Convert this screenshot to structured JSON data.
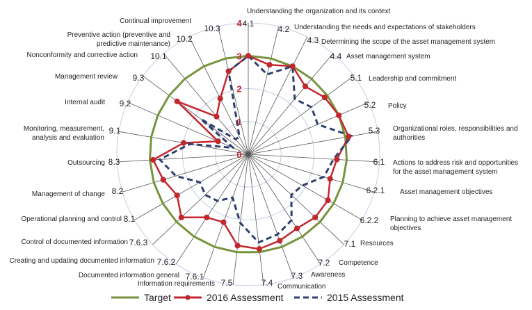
{
  "chart_data": {
    "type": "radar",
    "title": "",
    "rlim": [
      0,
      4
    ],
    "radial_ticks": [
      "0",
      "1",
      "2",
      "3",
      "4"
    ],
    "categories": [
      {
        "code": "4.1",
        "label": "Understanding the organization and its context"
      },
      {
        "code": "4.2",
        "label": "Understanding the needs and expectations of stakeholders"
      },
      {
        "code": "4.3",
        "label": "Determining the scope of the asset management system"
      },
      {
        "code": "4.4",
        "label": "Asset management system"
      },
      {
        "code": "5.1",
        "label": "Leadership and commitment"
      },
      {
        "code": "5.2",
        "label": "Policy"
      },
      {
        "code": "5.3",
        "label": "Organizational roles, responsibilities and authorities"
      },
      {
        "code": "6.1",
        "label": "Actions to address  risk and opportunities for the asset management system"
      },
      {
        "code": "6.2.1",
        "label": "Asset management objectives"
      },
      {
        "code": "6.2.2",
        "label": "Planning to achieve asset management objectives"
      },
      {
        "code": "7.1",
        "label": "Resources"
      },
      {
        "code": "7.2",
        "label": "Competence"
      },
      {
        "code": "7.3",
        "label": "Awareness"
      },
      {
        "code": "7.4",
        "label": "Communication"
      },
      {
        "code": "7.5",
        "label": "Information requirements"
      },
      {
        "code": "7.6.1",
        "label": "Documented  information general"
      },
      {
        "code": "7.6.2",
        "label": "Creating and updating documented information"
      },
      {
        "code": "7.6.3",
        "label": "Control of documented information"
      },
      {
        "code": "8.1",
        "label": "Operational planning and control"
      },
      {
        "code": "8.2",
        "label": "Management of change"
      },
      {
        "code": "8.3",
        "label": "Outsourcing"
      },
      {
        "code": "9.1",
        "label": "Monitoring, measurement, analysis and evaluation"
      },
      {
        "code": "9.2",
        "label": "Internal audit"
      },
      {
        "code": "9.3",
        "label": "Management review"
      },
      {
        "code": "10.1",
        "label": "Nonconformity and corrective action"
      },
      {
        "code": "10.2",
        "label": "Preventive action (preventive and predictive maintenance)"
      },
      {
        "code": "10.3",
        "label": "Continual improvement"
      }
    ],
    "series": [
      {
        "name": "Target",
        "color": "#77933c",
        "style": "solid",
        "values": [
          3,
          3,
          3,
          3,
          3,
          3,
          3,
          3,
          3,
          3,
          3,
          3,
          3,
          3,
          3,
          3,
          3,
          3,
          3,
          3,
          3,
          3,
          3,
          3,
          3,
          3,
          3
        ]
      },
      {
        "name": "2016 Assessment",
        "color": "#c0282e",
        "style": "solid-markers",
        "values": [
          3,
          2.8,
          3,
          2.7,
          2.9,
          3,
          3.1,
          2.7,
          2.6,
          2.8,
          2.8,
          2.7,
          2.8,
          2.9,
          2.8,
          2.2,
          2.3,
          2.8,
          2.5,
          2.7,
          2.9,
          2,
          1,
          2.7,
          1.5,
          1.9,
          2.6
        ]
      },
      {
        "name": "2015 Assessment",
        "color": "#2e3f6e",
        "style": "dashed",
        "values": [
          3,
          2.5,
          3,
          2.2,
          2.4,
          2.3,
          3.2,
          2.6,
          2.4,
          1.9,
          1.8,
          2.4,
          2.6,
          2.7,
          2.1,
          1.4,
          1.7,
          1.8,
          1.7,
          2.3,
          2.7,
          1.8,
          0.5,
          1.8,
          0.6,
          0.6,
          2.6
        ]
      }
    ],
    "legend_position": "bottom"
  }
}
